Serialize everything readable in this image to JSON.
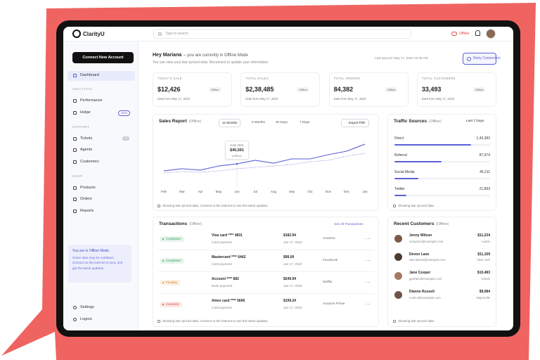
{
  "topbar": {
    "logo": "ClarityU",
    "search_placeholder": "Type to search",
    "status": "Offline"
  },
  "sidebar": {
    "button": "Connect New Account",
    "home": "Dashboard",
    "sections": [
      {
        "heading": "ANALYTICS",
        "items": [
          {
            "label": "Performance"
          },
          {
            "label": "Hotjar",
            "badge": "NEW"
          }
        ]
      },
      {
        "heading": "SUPPORT",
        "items": [
          {
            "label": "Tickets",
            "badge": "12"
          },
          {
            "label": "Agents"
          },
          {
            "label": "Customers"
          }
        ]
      },
      {
        "heading": "SHOP",
        "items": [
          {
            "label": "Products"
          },
          {
            "label": "Orders"
          },
          {
            "label": "Reports"
          }
        ]
      }
    ],
    "notice": {
      "title": "You are in Offline Mode",
      "text": "Some data may be outdated. Connect to the internet to sync and get the latest updates."
    },
    "bottom": [
      "Settings",
      "Logout"
    ]
  },
  "header": {
    "greeting": "Hey Mariana",
    "status": "– you are currently in Offline Mode",
    "subtitle": "You can view your last synced data. Reconnect to update your information.",
    "last_synced": "Last synced: May 17, 2022 10:45 AM",
    "button": "Retry Connection"
  },
  "kpis": [
    {
      "label": "TODAY'S SALE",
      "value": "$12,426",
      "badge": "Offline",
      "note": "Data from May 17, 2022"
    },
    {
      "label": "TOTAL SALES",
      "value": "$2,38,485",
      "badge": "Offline",
      "note": "Data from May 17, 2022"
    },
    {
      "label": "TOTAL ORDERS",
      "value": "84,382",
      "badge": "Offline",
      "note": "Data from May 17, 2022"
    },
    {
      "label": "TOTAL CUSTOMERS",
      "value": "33,493",
      "badge": "Offline",
      "note": "Data from May 17, 2022"
    }
  ],
  "sales_report": {
    "title": "Sales Report",
    "status": "(Offline)",
    "tabs": [
      "12 Months",
      "6 Months",
      "30 Days",
      "7 Days"
    ],
    "export": "Export PDF",
    "chart_data": {
      "type": "line",
      "categories": [
        "Feb",
        "Mar",
        "Apr",
        "May",
        "Jun",
        "Jul",
        "Aug",
        "Sep",
        "Oct",
        "Nov",
        "Dec",
        "Jan"
      ],
      "series": [
        {
          "color": "#5b5fd6",
          "values": [
            31400,
            35700,
            32900,
            41400,
            45591,
            52900,
            47100,
            55700,
            55700,
            64300,
            71400,
            85700
          ]
        },
        {
          "color": "#9a9de8",
          "style": "dashed",
          "values": [
            27100,
            30000,
            28600,
            31400,
            35700,
            38600,
            41400,
            44300,
            50000,
            52900,
            61400,
            67100
          ]
        }
      ],
      "ylim": [
        0,
        100000
      ]
    },
    "tooltip": {
      "label": "June 2021",
      "value": "$45,591",
      "note": "(Offline)"
    },
    "footer": "Showing last synced data. Connect to the internet to see the latest updates."
  },
  "traffic": {
    "title": "Traffic Sources",
    "status": "(Offline)",
    "period": "Last 7 Days",
    "color": "#5b5fd6",
    "sources": [
      {
        "name": "Direct",
        "value": 143382,
        "value_label": "1,43,382"
      },
      {
        "name": "Referral",
        "value": 87974,
        "value_label": "87,974"
      },
      {
        "name": "Social Media",
        "value": 45211,
        "value_label": "45,211"
      },
      {
        "name": "Twitter",
        "value": 21893,
        "value_label": "21,893"
      }
    ],
    "footer": "Showing last synced data"
  },
  "transactions": {
    "title": "Transactions",
    "status": "(Offline)",
    "link": "See All Transactions",
    "rows": [
      {
        "status": "Completed",
        "status_color": "#2e9d5b",
        "method": "Visa card **** 4831",
        "type": "Card payment",
        "amount": "$182.94",
        "date": "Jan 17, 2022",
        "merchant": "Amazon"
      },
      {
        "status": "Completed",
        "status_color": "#2e9d5b",
        "method": "Mastercard **** 6442",
        "type": "Card payment",
        "amount": "$99.00",
        "date": "Jan 17, 2022",
        "merchant": "Facebook"
      },
      {
        "status": "Pending",
        "status_color": "#d9822b",
        "method": "Account **** 882",
        "type": "Bank payment",
        "amount": "$249.94",
        "date": "Jan 17, 2022",
        "merchant": "Netflix"
      },
      {
        "status": "Canceled",
        "status_color": "#d6453d",
        "method": "Amex card **** 5666",
        "type": "Card payment",
        "amount": "$199.24",
        "date": "Jan 17, 2022",
        "merchant": "Amazon Prime"
      }
    ],
    "footer": "Showing last synced data. Connect to the internet to see the latest updates."
  },
  "customers": {
    "title": "Recent Customers",
    "status": "(Offline)",
    "rows": [
      {
        "name": "Jenny Wilson",
        "email": "w.lawson@example.com",
        "amount": "$11,234",
        "city": "Austin"
      },
      {
        "name": "Devon Lane",
        "email": "dat.roberts@example.com",
        "amount": "$11,159",
        "city": "New York"
      },
      {
        "name": "Jane Cooper",
        "email": "jgraham@example.com",
        "amount": "$10,483",
        "city": "Toledo"
      },
      {
        "name": "Dianne Russell",
        "email": "curtis.d@example.com",
        "amount": "$9,084",
        "city": "Naperville"
      }
    ],
    "footer": "Showing last synced data"
  }
}
